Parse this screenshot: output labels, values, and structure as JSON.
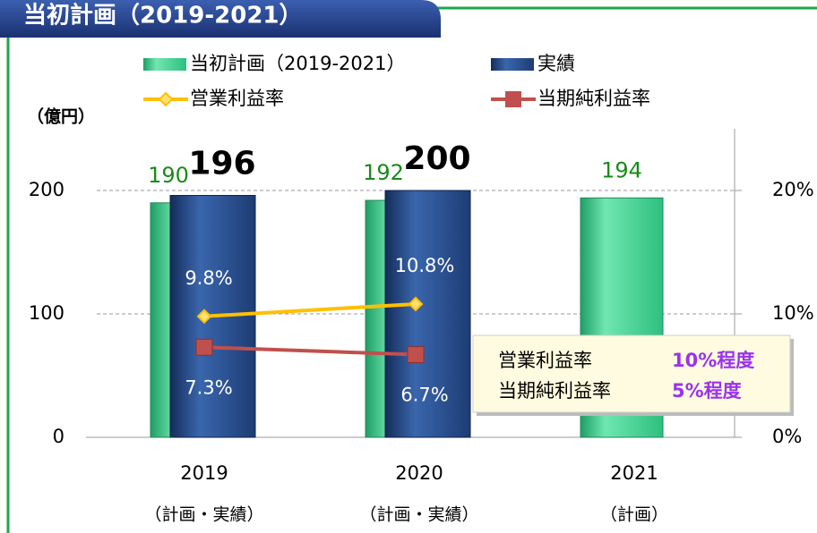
{
  "chart_data": {
    "type": "bar",
    "title": "当初計画（2019-2021）",
    "y_unit": "（億円）",
    "categories": [
      "2019",
      "2020",
      "2021"
    ],
    "category_sublabels": [
      "（計画・実績）",
      "（計画・実績）",
      "（計画）"
    ],
    "ylim": [
      0,
      250
    ],
    "yticks": [
      0,
      100,
      200
    ],
    "y2lim": [
      0,
      25
    ],
    "y2ticks": [
      {
        "value": 0,
        "label": "0%"
      },
      {
        "value": 10,
        "label": "10%"
      },
      {
        "value": 20,
        "label": "20%"
      }
    ],
    "grid": true,
    "series": [
      {
        "name": "当初計画（2019-2021）",
        "color": "#3fcf8e",
        "values": [
          190,
          192,
          194
        ]
      },
      {
        "name": "実績",
        "color": "#2a4f8f",
        "values": [
          196,
          200,
          null
        ]
      },
      {
        "name": "営業利益率",
        "color": "#ffc000",
        "type": "line",
        "axis": "y2",
        "values": [
          9.8,
          10.8,
          null
        ],
        "value_labels": [
          "9.8%",
          "10.8%",
          null
        ]
      },
      {
        "name": "当期純利益率",
        "color": "#c0504d",
        "type": "line",
        "axis": "y2",
        "values": [
          7.3,
          6.7,
          null
        ],
        "value_labels": [
          "7.3%",
          "6.7%",
          null
        ]
      }
    ],
    "annotation": {
      "rows": [
        [
          "営業利益率",
          "10%程度"
        ],
        [
          "当期純利益率",
          "5%程度"
        ]
      ]
    }
  }
}
